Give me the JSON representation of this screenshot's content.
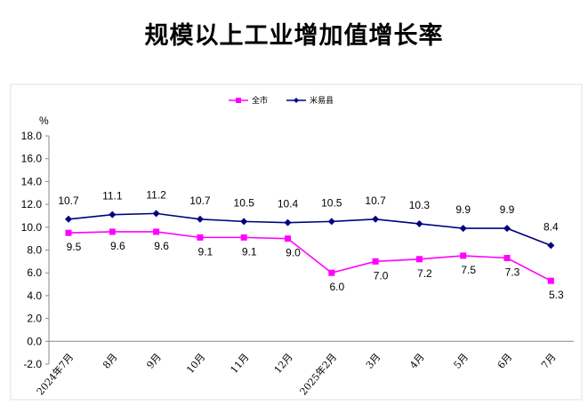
{
  "chart_data": {
    "type": "line",
    "title": "规模以上工业增加值增长率",
    "ylabel": "%",
    "xlabel": "",
    "ylim": [
      -2.0,
      18.0
    ],
    "yticks": [
      "18.0",
      "16.0",
      "14.0",
      "12.0",
      "10.0",
      "8.0",
      "6.0",
      "4.0",
      "2.0",
      "0.0",
      "-2.0"
    ],
    "categories": [
      "2024年7月",
      "8月",
      "9月",
      "10月",
      "11月",
      "12月",
      "2025年2月",
      "3月",
      "4月",
      "5月",
      "6月",
      "7月"
    ],
    "legend_position": "top-center",
    "grid": false,
    "series": [
      {
        "name": "全市",
        "color": "#FF00FF",
        "marker": "square",
        "values": [
          9.5,
          9.6,
          9.6,
          9.1,
          9.1,
          9.0,
          6.0,
          7.0,
          7.2,
          7.5,
          7.3,
          5.3
        ],
        "labels": [
          "9.5",
          "9.6",
          "9.6",
          "9.1",
          "9.1",
          "9.0",
          "6.0",
          "7.0",
          "7.2",
          "7.5",
          "7.3",
          "5.3"
        ]
      },
      {
        "name": "米易县",
        "color": "#000080",
        "marker": "diamond",
        "values": [
          10.7,
          11.1,
          11.2,
          10.7,
          10.5,
          10.4,
          10.5,
          10.7,
          10.3,
          9.9,
          9.9,
          8.4
        ],
        "labels": [
          "10.7",
          "11.1",
          "11.2",
          "10.7",
          "10.5",
          "10.4",
          "10.5",
          "10.7",
          "10.3",
          "9.9",
          "9.9",
          "8.4"
        ]
      }
    ]
  }
}
